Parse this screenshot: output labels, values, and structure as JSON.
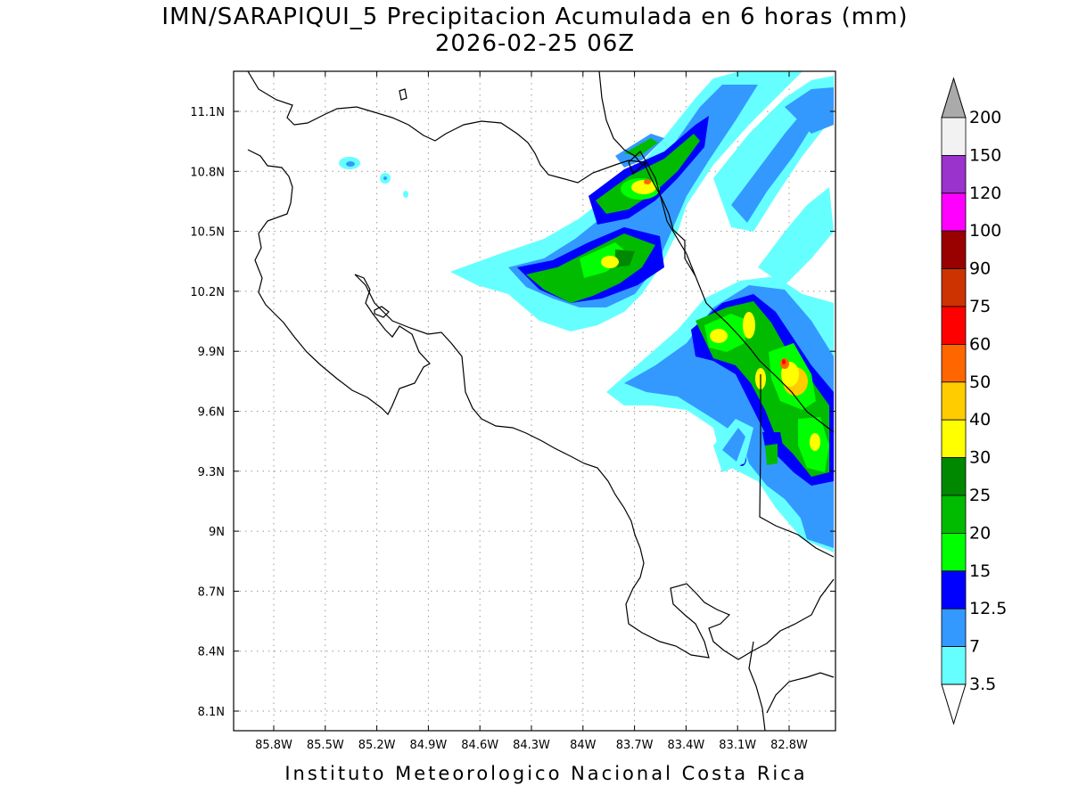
{
  "title_line1": "IMN/SARAPIQUI_5 Precipitacion Acumulada en 6 horas (mm)",
  "title_line2": "2026-02-25 06Z",
  "footer": "Instituto Meteorologico Nacional Costa Rica",
  "axes": {
    "lon_labels": [
      "85.8W",
      "85.5W",
      "85.2W",
      "84.9W",
      "84.6W",
      "84.3W",
      "84W",
      "83.7W",
      "83.4W",
      "83.1W",
      "82.8W"
    ],
    "lat_labels": [
      "11.1N",
      "10.8N",
      "10.5N",
      "10.2N",
      "9.9N",
      "9.6N",
      "9.3N",
      "9N",
      "8.7N",
      "8.4N",
      "8.1N"
    ]
  },
  "colorbar": {
    "levels": [
      "200",
      "150",
      "120",
      "100",
      "90",
      "75",
      "60",
      "50",
      "40",
      "30",
      "25",
      "20",
      "15",
      "12.5",
      "7",
      "3.5"
    ],
    "colors": [
      "#f2f2f2",
      "#9933cc",
      "#ff00ff",
      "#990000",
      "#cc3300",
      "#ff0000",
      "#ff6600",
      "#ffcc00",
      "#ffff00",
      "#008800",
      "#00bb00",
      "#00ff00",
      "#0000ff",
      "#3399ff",
      "#66ffff"
    ],
    "over_color": "#aaaaaa",
    "under_color": "#ffffff"
  }
}
